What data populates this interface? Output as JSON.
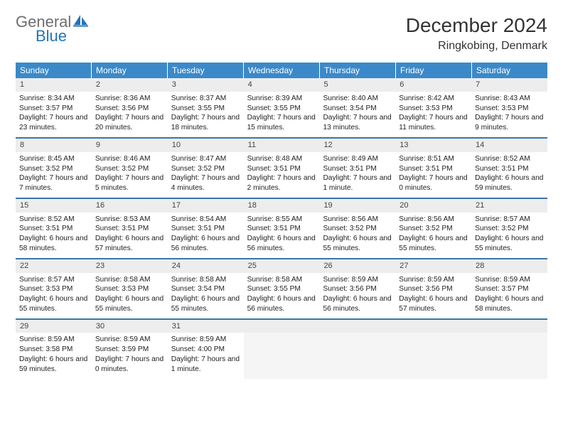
{
  "logo": {
    "text1": "General",
    "text2": "Blue",
    "color_general": "#6e6e6e",
    "color_blue": "#2474b8",
    "icon_color": "#2474b8"
  },
  "title": "December 2024",
  "location": "Ringkobing, Denmark",
  "colors": {
    "header_bg": "#3b89c9",
    "header_text": "#ffffff",
    "daynum_bg": "#ededed",
    "row_border": "#3b76a8",
    "text": "#222222",
    "empty_bg": "#f5f5f5"
  },
  "days_of_week": [
    "Sunday",
    "Monday",
    "Tuesday",
    "Wednesday",
    "Thursday",
    "Friday",
    "Saturday"
  ],
  "weeks": [
    [
      {
        "n": "1",
        "sunrise": "Sunrise: 8:34 AM",
        "sunset": "Sunset: 3:57 PM",
        "daylight": "Daylight: 7 hours and 23 minutes."
      },
      {
        "n": "2",
        "sunrise": "Sunrise: 8:36 AM",
        "sunset": "Sunset: 3:56 PM",
        "daylight": "Daylight: 7 hours and 20 minutes."
      },
      {
        "n": "3",
        "sunrise": "Sunrise: 8:37 AM",
        "sunset": "Sunset: 3:55 PM",
        "daylight": "Daylight: 7 hours and 18 minutes."
      },
      {
        "n": "4",
        "sunrise": "Sunrise: 8:39 AM",
        "sunset": "Sunset: 3:55 PM",
        "daylight": "Daylight: 7 hours and 15 minutes."
      },
      {
        "n": "5",
        "sunrise": "Sunrise: 8:40 AM",
        "sunset": "Sunset: 3:54 PM",
        "daylight": "Daylight: 7 hours and 13 minutes."
      },
      {
        "n": "6",
        "sunrise": "Sunrise: 8:42 AM",
        "sunset": "Sunset: 3:53 PM",
        "daylight": "Daylight: 7 hours and 11 minutes."
      },
      {
        "n": "7",
        "sunrise": "Sunrise: 8:43 AM",
        "sunset": "Sunset: 3:53 PM",
        "daylight": "Daylight: 7 hours and 9 minutes."
      }
    ],
    [
      {
        "n": "8",
        "sunrise": "Sunrise: 8:45 AM",
        "sunset": "Sunset: 3:52 PM",
        "daylight": "Daylight: 7 hours and 7 minutes."
      },
      {
        "n": "9",
        "sunrise": "Sunrise: 8:46 AM",
        "sunset": "Sunset: 3:52 PM",
        "daylight": "Daylight: 7 hours and 5 minutes."
      },
      {
        "n": "10",
        "sunrise": "Sunrise: 8:47 AM",
        "sunset": "Sunset: 3:52 PM",
        "daylight": "Daylight: 7 hours and 4 minutes."
      },
      {
        "n": "11",
        "sunrise": "Sunrise: 8:48 AM",
        "sunset": "Sunset: 3:51 PM",
        "daylight": "Daylight: 7 hours and 2 minutes."
      },
      {
        "n": "12",
        "sunrise": "Sunrise: 8:49 AM",
        "sunset": "Sunset: 3:51 PM",
        "daylight": "Daylight: 7 hours and 1 minute."
      },
      {
        "n": "13",
        "sunrise": "Sunrise: 8:51 AM",
        "sunset": "Sunset: 3:51 PM",
        "daylight": "Daylight: 7 hours and 0 minutes."
      },
      {
        "n": "14",
        "sunrise": "Sunrise: 8:52 AM",
        "sunset": "Sunset: 3:51 PM",
        "daylight": "Daylight: 6 hours and 59 minutes."
      }
    ],
    [
      {
        "n": "15",
        "sunrise": "Sunrise: 8:52 AM",
        "sunset": "Sunset: 3:51 PM",
        "daylight": "Daylight: 6 hours and 58 minutes."
      },
      {
        "n": "16",
        "sunrise": "Sunrise: 8:53 AM",
        "sunset": "Sunset: 3:51 PM",
        "daylight": "Daylight: 6 hours and 57 minutes."
      },
      {
        "n": "17",
        "sunrise": "Sunrise: 8:54 AM",
        "sunset": "Sunset: 3:51 PM",
        "daylight": "Daylight: 6 hours and 56 minutes."
      },
      {
        "n": "18",
        "sunrise": "Sunrise: 8:55 AM",
        "sunset": "Sunset: 3:51 PM",
        "daylight": "Daylight: 6 hours and 56 minutes."
      },
      {
        "n": "19",
        "sunrise": "Sunrise: 8:56 AM",
        "sunset": "Sunset: 3:52 PM",
        "daylight": "Daylight: 6 hours and 55 minutes."
      },
      {
        "n": "20",
        "sunrise": "Sunrise: 8:56 AM",
        "sunset": "Sunset: 3:52 PM",
        "daylight": "Daylight: 6 hours and 55 minutes."
      },
      {
        "n": "21",
        "sunrise": "Sunrise: 8:57 AM",
        "sunset": "Sunset: 3:52 PM",
        "daylight": "Daylight: 6 hours and 55 minutes."
      }
    ],
    [
      {
        "n": "22",
        "sunrise": "Sunrise: 8:57 AM",
        "sunset": "Sunset: 3:53 PM",
        "daylight": "Daylight: 6 hours and 55 minutes."
      },
      {
        "n": "23",
        "sunrise": "Sunrise: 8:58 AM",
        "sunset": "Sunset: 3:53 PM",
        "daylight": "Daylight: 6 hours and 55 minutes."
      },
      {
        "n": "24",
        "sunrise": "Sunrise: 8:58 AM",
        "sunset": "Sunset: 3:54 PM",
        "daylight": "Daylight: 6 hours and 55 minutes."
      },
      {
        "n": "25",
        "sunrise": "Sunrise: 8:58 AM",
        "sunset": "Sunset: 3:55 PM",
        "daylight": "Daylight: 6 hours and 56 minutes."
      },
      {
        "n": "26",
        "sunrise": "Sunrise: 8:59 AM",
        "sunset": "Sunset: 3:56 PM",
        "daylight": "Daylight: 6 hours and 56 minutes."
      },
      {
        "n": "27",
        "sunrise": "Sunrise: 8:59 AM",
        "sunset": "Sunset: 3:56 PM",
        "daylight": "Daylight: 6 hours and 57 minutes."
      },
      {
        "n": "28",
        "sunrise": "Sunrise: 8:59 AM",
        "sunset": "Sunset: 3:57 PM",
        "daylight": "Daylight: 6 hours and 58 minutes."
      }
    ],
    [
      {
        "n": "29",
        "sunrise": "Sunrise: 8:59 AM",
        "sunset": "Sunset: 3:58 PM",
        "daylight": "Daylight: 6 hours and 59 minutes."
      },
      {
        "n": "30",
        "sunrise": "Sunrise: 8:59 AM",
        "sunset": "Sunset: 3:59 PM",
        "daylight": "Daylight: 7 hours and 0 minutes."
      },
      {
        "n": "31",
        "sunrise": "Sunrise: 8:59 AM",
        "sunset": "Sunset: 4:00 PM",
        "daylight": "Daylight: 7 hours and 1 minute."
      },
      null,
      null,
      null,
      null
    ]
  ]
}
